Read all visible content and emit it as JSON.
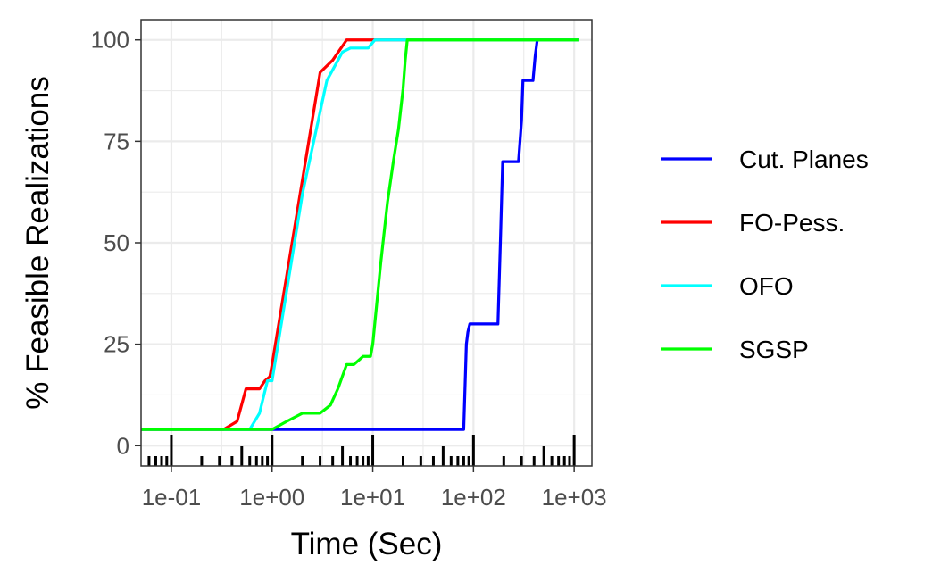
{
  "chart_data": {
    "type": "line",
    "title": "",
    "xlabel": "Time (Sec)",
    "ylabel": "% Feasible Realizations",
    "x_scale": "log10",
    "xlim": [
      0.05,
      1500
    ],
    "ylim": [
      -5,
      105
    ],
    "x_ticks": [
      0.1,
      1,
      10,
      100,
      1000
    ],
    "x_tick_labels": [
      "1e-01",
      "1e+00",
      "1e+01",
      "1e+02",
      "1e+03"
    ],
    "y_ticks": [
      0,
      25,
      50,
      75,
      100
    ],
    "y_tick_labels": [
      "0",
      "25",
      "50",
      "75",
      "100"
    ],
    "grid": true,
    "rug": true,
    "legend_position": "right",
    "series": [
      {
        "name": "Cut. Planes",
        "color": "#0000FF",
        "points": [
          [
            0.05,
            4
          ],
          [
            80,
            4
          ],
          [
            85,
            25
          ],
          [
            88,
            28
          ],
          [
            92,
            30
          ],
          [
            175,
            30
          ],
          [
            185,
            50
          ],
          [
            195,
            70
          ],
          [
            280,
            70
          ],
          [
            300,
            80
          ],
          [
            310,
            90
          ],
          [
            390,
            90
          ],
          [
            410,
            96
          ],
          [
            430,
            100
          ],
          [
            1100,
            100
          ]
        ]
      },
      {
        "name": "FO-Pess.",
        "color": "#FF0000",
        "points": [
          [
            0.05,
            4
          ],
          [
            0.33,
            4
          ],
          [
            0.45,
            6
          ],
          [
            0.55,
            14
          ],
          [
            0.75,
            14
          ],
          [
            0.85,
            16
          ],
          [
            0.95,
            17
          ],
          [
            1.0,
            20
          ],
          [
            3.0,
            92
          ],
          [
            4.0,
            95
          ],
          [
            5.5,
            100
          ],
          [
            1100,
            100
          ]
        ]
      },
      {
        "name": "OFO",
        "color": "#00FFFF",
        "points": [
          [
            0.05,
            4
          ],
          [
            0.6,
            4
          ],
          [
            0.75,
            8
          ],
          [
            0.9,
            16
          ],
          [
            1.0,
            16
          ],
          [
            2.0,
            62
          ],
          [
            3.5,
            90
          ],
          [
            5.0,
            97
          ],
          [
            6.0,
            98
          ],
          [
            9.0,
            98
          ],
          [
            10.5,
            100
          ],
          [
            1100,
            100
          ]
        ]
      },
      {
        "name": "SGSP",
        "color": "#00FF00",
        "points": [
          [
            0.05,
            4
          ],
          [
            1.0,
            4
          ],
          [
            1.4,
            6
          ],
          [
            2.0,
            8
          ],
          [
            3.0,
            8
          ],
          [
            3.8,
            10
          ],
          [
            4.5,
            14
          ],
          [
            5.5,
            20
          ],
          [
            6.5,
            20
          ],
          [
            8.0,
            22
          ],
          [
            9.5,
            22
          ],
          [
            10.0,
            25
          ],
          [
            12,
            45
          ],
          [
            14,
            60
          ],
          [
            16,
            70
          ],
          [
            18,
            78
          ],
          [
            20,
            88
          ],
          [
            21,
            95
          ],
          [
            22,
            100
          ],
          [
            1100,
            100
          ]
        ]
      }
    ],
    "rug_major": [
      0.1,
      1,
      10,
      100,
      1000
    ],
    "rug_mid": [
      0.5,
      5,
      50,
      500
    ],
    "rug_minor": [
      0.06,
      0.07,
      0.08,
      0.09,
      0.2,
      0.3,
      0.4,
      0.6,
      0.7,
      0.8,
      0.9,
      2,
      3,
      4,
      6,
      7,
      8,
      9,
      20,
      30,
      40,
      60,
      70,
      80,
      90,
      200,
      300,
      400,
      600,
      700,
      800,
      900
    ]
  }
}
